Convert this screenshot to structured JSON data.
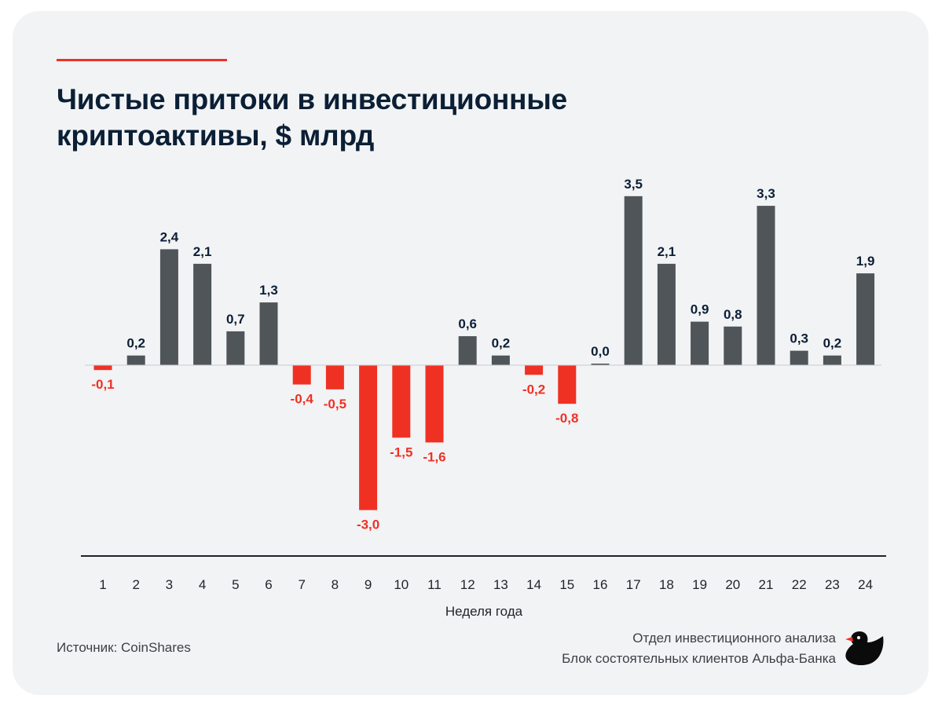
{
  "header": {
    "title_line1": "Чистые притоки в инвестиционные",
    "title_line2": "криптоактивы, $ млрд"
  },
  "footer": {
    "source": "Источник: CoinShares",
    "dept_line1": "Отдел инвестиционного анализа",
    "dept_line2": "Блок состоятельных клиентов Альфа-Банка",
    "logo_icon": "duck-logo-icon"
  },
  "colors": {
    "positive": "#4f5559",
    "negative": "#ef3124",
    "positive_label": "#0b1f35",
    "negative_label": "#ef3124",
    "accent": "#ef3124"
  },
  "chart_data": {
    "type": "bar",
    "xlabel": "Неделя года",
    "ylabel": "",
    "categories": [
      "1",
      "2",
      "3",
      "4",
      "5",
      "6",
      "7",
      "8",
      "9",
      "10",
      "11",
      "12",
      "13",
      "14",
      "15",
      "16",
      "17",
      "18",
      "19",
      "20",
      "21",
      "22",
      "23",
      "24"
    ],
    "values": [
      -0.1,
      0.2,
      2.4,
      2.1,
      0.7,
      1.3,
      -0.4,
      -0.5,
      -3.0,
      -1.5,
      -1.6,
      0.6,
      0.2,
      -0.2,
      -0.8,
      0.0,
      3.5,
      2.1,
      0.9,
      0.8,
      3.3,
      0.3,
      0.2,
      1.9
    ],
    "labels": [
      "-0,1",
      "0,2",
      "2,4",
      "2,1",
      "0,7",
      "1,3",
      "-0,4",
      "-0,5",
      "-3,0",
      "-1,5",
      "-1,6",
      "0,6",
      "0,2",
      "-0,2",
      "-0,8",
      "0,0",
      "3,5",
      "2,1",
      "0,9",
      "0,8",
      "3,3",
      "0,3",
      "0,2",
      "1,9"
    ],
    "ylim": [
      -4.0,
      3.5
    ],
    "grid": false,
    "legend": "none"
  }
}
